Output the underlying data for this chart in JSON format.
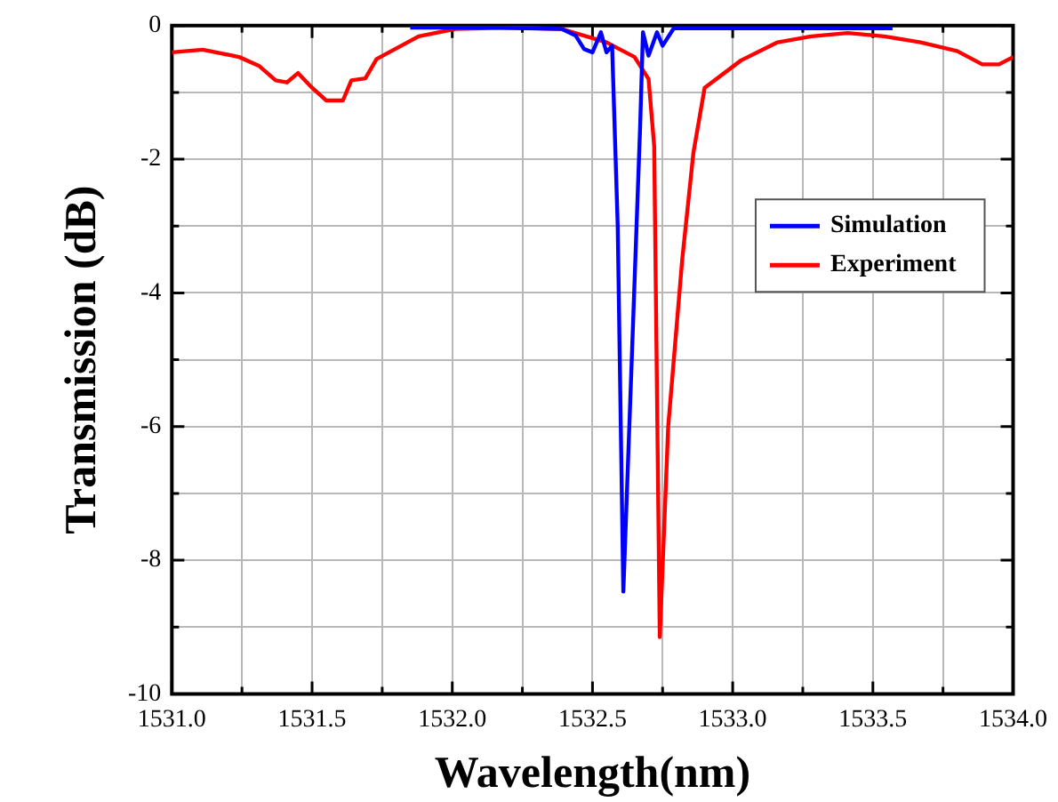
{
  "chart_data": {
    "type": "line",
    "xlabel": "Wavelength(nm)",
    "ylabel": "Transmission (dB)",
    "xlim": [
      1531.0,
      1534.0
    ],
    "ylim": [
      -10,
      0
    ],
    "xticks": [
      {
        "value": 1531.0,
        "label": "1531.0"
      },
      {
        "value": 1531.25,
        "label": null
      },
      {
        "value": 1531.5,
        "label": "1531.5"
      },
      {
        "value": 1531.75,
        "label": null
      },
      {
        "value": 1532.0,
        "label": "1532.0"
      },
      {
        "value": 1532.25,
        "label": null
      },
      {
        "value": 1532.5,
        "label": "1532.5"
      },
      {
        "value": 1532.75,
        "label": null
      },
      {
        "value": 1533.0,
        "label": "1533.0"
      },
      {
        "value": 1533.25,
        "label": null
      },
      {
        "value": 1533.5,
        "label": "1533.5"
      },
      {
        "value": 1533.75,
        "label": null
      },
      {
        "value": 1534.0,
        "label": "1534.0"
      }
    ],
    "yticks": [
      -10,
      {
        "value": -9,
        "label": null
      },
      -8,
      {
        "value": -7,
        "label": null
      },
      -6,
      {
        "value": -5,
        "label": null
      },
      -4,
      {
        "value": -3,
        "label": null
      },
      -2,
      {
        "value": -1,
        "label": null
      },
      0
    ],
    "grid": true,
    "legend": "right",
    "marker": "none",
    "line_style": "solid",
    "series": [
      {
        "name": "Simulation",
        "color": "#0000ff",
        "x": [
          1531.85,
          1532.14,
          1532.39,
          1532.44,
          1532.47,
          1532.5,
          1532.53,
          1532.55,
          1532.57,
          1532.59,
          1532.61,
          1532.64,
          1532.67,
          1532.68,
          1532.7,
          1532.73,
          1532.75,
          1532.79,
          1533.03,
          1533.57
        ],
        "values": [
          -0.03,
          -0.03,
          -0.05,
          -0.15,
          -0.35,
          -0.4,
          -0.1,
          -0.4,
          -0.3,
          -3,
          -8.47,
          -5,
          -1.5,
          -0.1,
          -0.45,
          -0.1,
          -0.3,
          -0.04,
          -0.04,
          -0.04
        ]
      },
      {
        "name": "Experiment",
        "color": "#ff0000",
        "x": [
          1531.0,
          1531.11,
          1531.24,
          1531.31,
          1531.37,
          1531.41,
          1531.45,
          1531.5,
          1531.55,
          1531.61,
          1531.64,
          1531.69,
          1531.73,
          1531.88,
          1532.01,
          1532.2,
          1532.39,
          1532.55,
          1532.65,
          1532.7,
          1532.72,
          1532.74,
          1532.77,
          1532.82,
          1532.86,
          1532.9,
          1533.03,
          1533.16,
          1533.28,
          1533.41,
          1533.54,
          1533.67,
          1533.8,
          1533.89,
          1533.95,
          1534.0
        ],
        "values": [
          -0.4,
          -0.36,
          -0.47,
          -0.6,
          -0.82,
          -0.85,
          -0.71,
          -0.93,
          -1.12,
          -1.12,
          -0.82,
          -0.79,
          -0.5,
          -0.16,
          -0.05,
          -0.03,
          -0.05,
          -0.25,
          -0.47,
          -0.8,
          -1.8,
          -9.15,
          -6,
          -3.5,
          -1.9,
          -0.93,
          -0.52,
          -0.25,
          -0.16,
          -0.11,
          -0.16,
          -0.25,
          -0.38,
          -0.58,
          -0.58,
          -0.47
        ]
      }
    ]
  }
}
